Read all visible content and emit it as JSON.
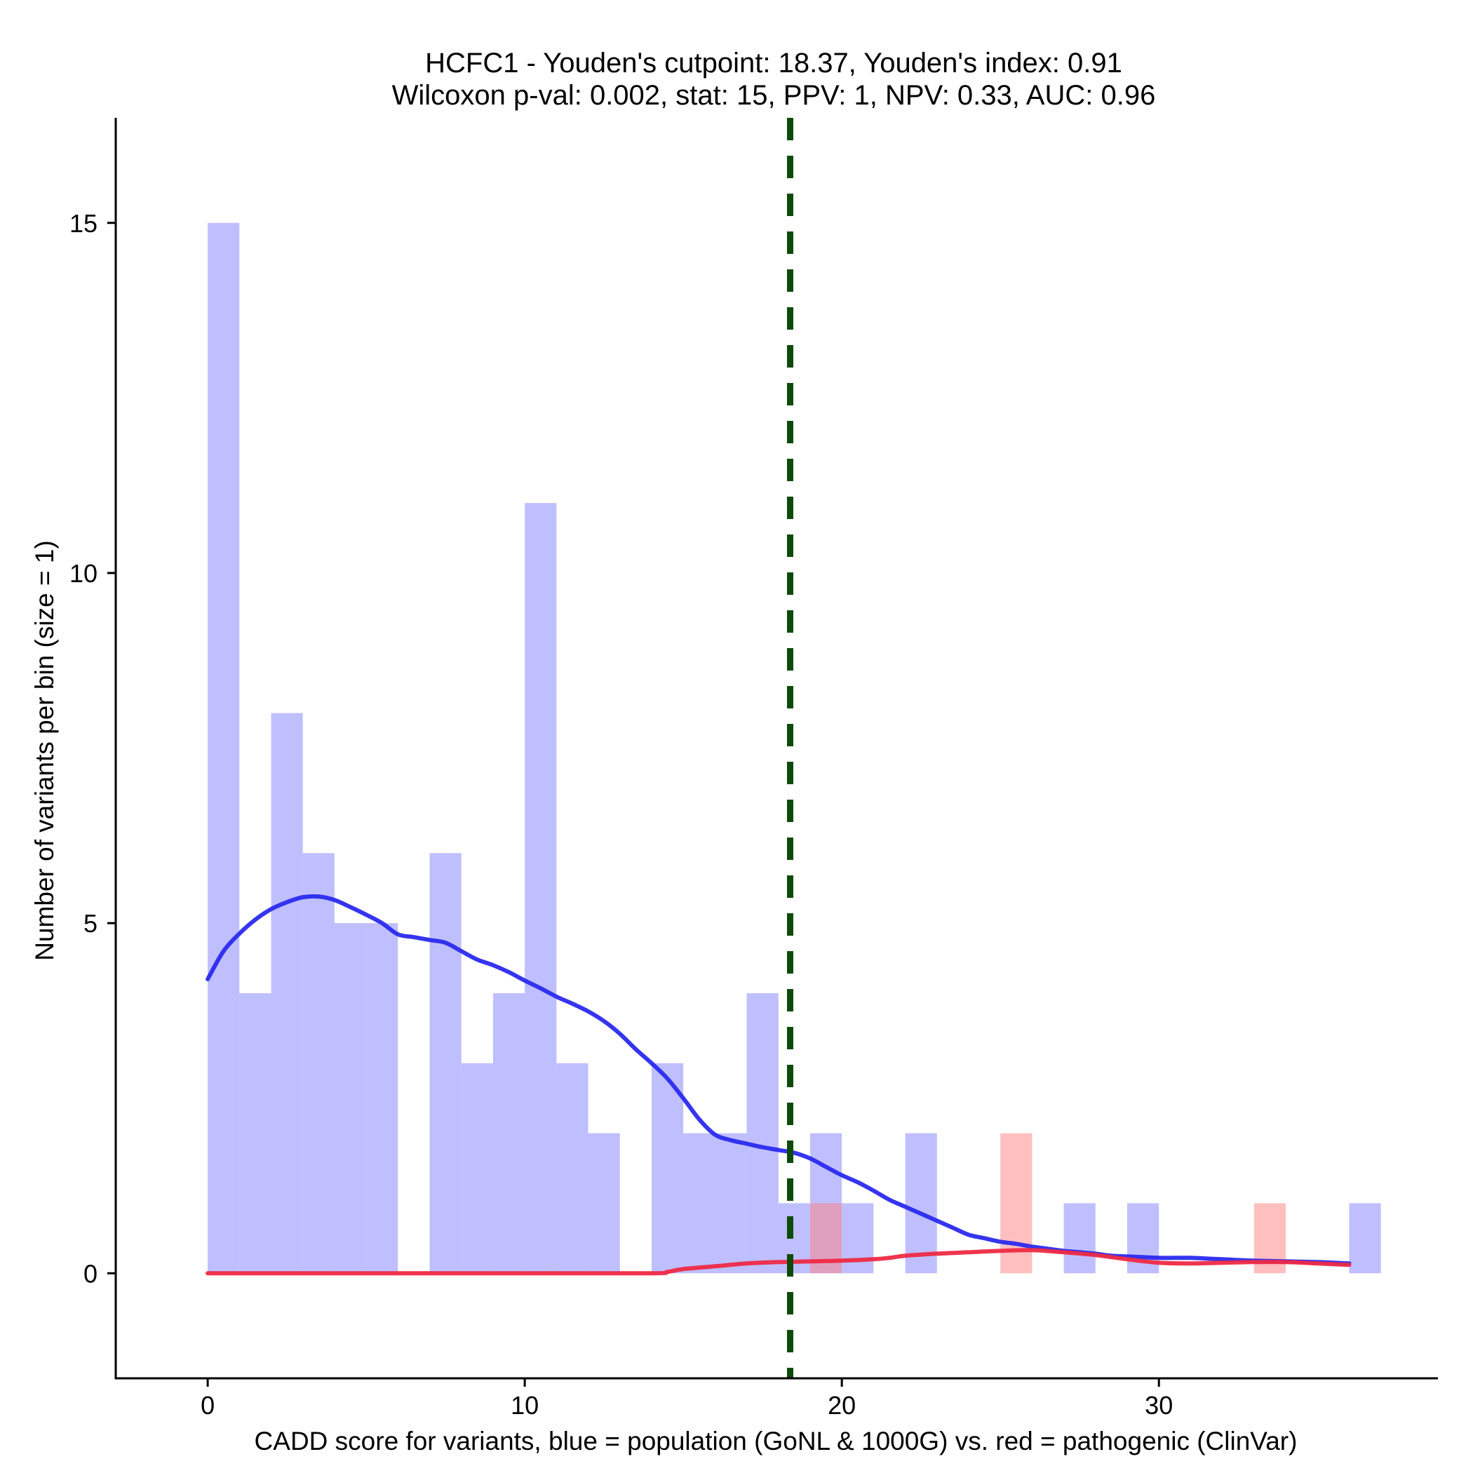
{
  "chart_data": {
    "type": "bar",
    "title": "HCFC1 - Youden's cutpoint: 18.37, Youden's index: 0.91",
    "subtitle": "Wilcoxon p-val: 0.002, stat: 15, PPV: 1, NPV: 0.33, AUC: 0.96",
    "xlabel": "CADD score for variants, blue = population (GoNL & 1000G) vs. red = pathogenic (ClinVar)",
    "ylabel": "Number of variants per bin (size = 1)",
    "xlim": [
      -2.9,
      38.8
    ],
    "ylim": [
      -1.5,
      16.5
    ],
    "x_ticks": [
      0,
      10,
      20,
      30
    ],
    "x_tick_labels": [
      "0",
      "10",
      "20",
      "30"
    ],
    "y_ticks": [
      0,
      5,
      10,
      15
    ],
    "y_tick_labels": [
      "0",
      "5",
      "10",
      "15"
    ],
    "bin_width": 1,
    "cutpoint": 18.37,
    "series": [
      {
        "name": "population (GoNL & 1000G)",
        "color": "#8080ff",
        "opacity": 0.5,
        "bins": [
          {
            "start": 0,
            "count": 15
          },
          {
            "start": 1,
            "count": 4
          },
          {
            "start": 2,
            "count": 8
          },
          {
            "start": 3,
            "count": 6
          },
          {
            "start": 4,
            "count": 5
          },
          {
            "start": 5,
            "count": 5
          },
          {
            "start": 7,
            "count": 6
          },
          {
            "start": 8,
            "count": 3
          },
          {
            "start": 9,
            "count": 4
          },
          {
            "start": 10,
            "count": 11
          },
          {
            "start": 11,
            "count": 3
          },
          {
            "start": 12,
            "count": 2
          },
          {
            "start": 14,
            "count": 3
          },
          {
            "start": 15,
            "count": 2
          },
          {
            "start": 16,
            "count": 2
          },
          {
            "start": 17,
            "count": 4
          },
          {
            "start": 18,
            "count": 1
          },
          {
            "start": 19,
            "count": 2
          },
          {
            "start": 20,
            "count": 1
          },
          {
            "start": 22,
            "count": 2
          },
          {
            "start": 27,
            "count": 1
          },
          {
            "start": 29,
            "count": 1
          },
          {
            "start": 36,
            "count": 1
          }
        ]
      },
      {
        "name": "pathogenic (ClinVar)",
        "color": "#ff8080",
        "opacity": 0.5,
        "bins": [
          {
            "start": 19,
            "count": 1
          },
          {
            "start": 25,
            "count": 2
          },
          {
            "start": 33,
            "count": 1
          }
        ]
      }
    ],
    "density_lines": [
      {
        "name": "population density",
        "color": "#2a2aee",
        "points": [
          [
            0,
            4.2
          ],
          [
            0.5,
            4.6
          ],
          [
            1,
            4.85
          ],
          [
            1.5,
            5.05
          ],
          [
            2,
            5.2
          ],
          [
            2.5,
            5.3
          ],
          [
            3,
            5.37
          ],
          [
            3.5,
            5.38
          ],
          [
            4,
            5.33
          ],
          [
            4.5,
            5.23
          ],
          [
            5,
            5.12
          ],
          [
            5.5,
            5.0
          ],
          [
            6,
            4.84
          ],
          [
            6.5,
            4.8
          ],
          [
            7,
            4.76
          ],
          [
            7.5,
            4.72
          ],
          [
            8,
            4.6
          ],
          [
            8.5,
            4.48
          ],
          [
            9,
            4.4
          ],
          [
            9.5,
            4.3
          ],
          [
            10,
            4.18
          ],
          [
            10.5,
            4.07
          ],
          [
            11,
            3.95
          ],
          [
            11.5,
            3.85
          ],
          [
            12,
            3.74
          ],
          [
            12.5,
            3.6
          ],
          [
            13,
            3.42
          ],
          [
            13.5,
            3.2
          ],
          [
            14,
            3.0
          ],
          [
            14.5,
            2.78
          ],
          [
            15,
            2.5
          ],
          [
            15.5,
            2.2
          ],
          [
            16,
            1.98
          ],
          [
            16.5,
            1.9
          ],
          [
            17,
            1.85
          ],
          [
            17.5,
            1.8
          ],
          [
            18,
            1.76
          ],
          [
            18.5,
            1.72
          ],
          [
            19,
            1.64
          ],
          [
            19.5,
            1.52
          ],
          [
            20,
            1.4
          ],
          [
            20.5,
            1.3
          ],
          [
            21,
            1.18
          ],
          [
            21.5,
            1.05
          ],
          [
            22,
            0.95
          ],
          [
            22.5,
            0.85
          ],
          [
            23,
            0.75
          ],
          [
            23.5,
            0.65
          ],
          [
            24,
            0.55
          ],
          [
            24.5,
            0.5
          ],
          [
            25,
            0.45
          ],
          [
            25.5,
            0.42
          ],
          [
            26,
            0.38
          ],
          [
            26.5,
            0.35
          ],
          [
            27,
            0.32
          ],
          [
            27.5,
            0.3
          ],
          [
            28,
            0.28
          ],
          [
            28.5,
            0.25
          ],
          [
            29,
            0.24
          ],
          [
            29.5,
            0.23
          ],
          [
            30,
            0.22
          ],
          [
            30.5,
            0.22
          ],
          [
            31,
            0.22
          ],
          [
            31.5,
            0.21
          ],
          [
            32,
            0.2
          ],
          [
            33,
            0.18
          ],
          [
            34,
            0.17
          ],
          [
            35,
            0.16
          ],
          [
            36,
            0.14
          ]
        ]
      },
      {
        "name": "pathogenic density",
        "color": "#ee2a45",
        "points": [
          [
            0,
            0
          ],
          [
            5,
            0
          ],
          [
            10,
            0
          ],
          [
            14,
            0
          ],
          [
            14.5,
            0.02
          ],
          [
            15,
            0.06
          ],
          [
            16,
            0.1
          ],
          [
            17,
            0.14
          ],
          [
            18,
            0.16
          ],
          [
            19,
            0.17
          ],
          [
            20,
            0.18
          ],
          [
            21,
            0.2
          ],
          [
            21.5,
            0.22
          ],
          [
            22,
            0.25
          ],
          [
            23,
            0.28
          ],
          [
            24,
            0.3
          ],
          [
            25,
            0.32
          ],
          [
            26,
            0.33
          ],
          [
            27,
            0.3
          ],
          [
            28,
            0.26
          ],
          [
            29,
            0.2
          ],
          [
            30,
            0.15
          ],
          [
            31,
            0.14
          ],
          [
            32,
            0.15
          ],
          [
            33,
            0.16
          ],
          [
            34,
            0.16
          ],
          [
            35,
            0.14
          ],
          [
            36,
            0.12
          ]
        ]
      }
    ]
  }
}
